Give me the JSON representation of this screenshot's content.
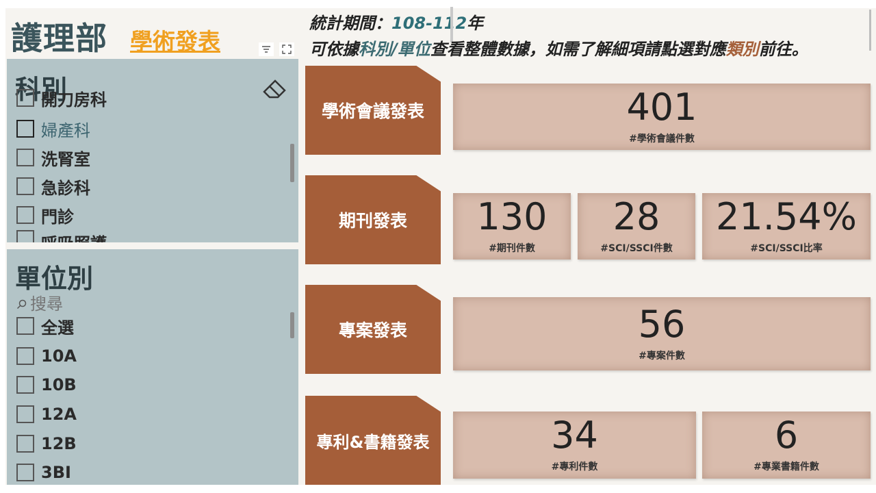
{
  "header": {
    "dept_title": "護理部",
    "section_link": "學術發表",
    "period_label": "統計期間：",
    "period_value": "108-112",
    "period_suffix": "年",
    "hint_part1": "可依據",
    "hint_accent1": "科別/單位",
    "hint_part2": "查看整體數據，如需了解細項請點選對應",
    "hint_accent2": "類別",
    "hint_part3": "前往。"
  },
  "slicer_dept": {
    "title": "科別",
    "items": [
      {
        "label": "開刀房科"
      },
      {
        "label": "婦產科"
      },
      {
        "label": "洗腎室"
      },
      {
        "label": "急診科"
      },
      {
        "label": "門診"
      },
      {
        "label": "呼吸照護"
      }
    ]
  },
  "slicer_unit": {
    "title": "單位別",
    "search_placeholder": "搜尋",
    "items": [
      {
        "label": "全選"
      },
      {
        "label": "10A"
      },
      {
        "label": "10B"
      },
      {
        "label": "12A"
      },
      {
        "label": "12B"
      },
      {
        "label": "3BI"
      }
    ]
  },
  "categories": {
    "conference": {
      "label": "學術會議發表"
    },
    "journal": {
      "label": "期刊發表"
    },
    "project": {
      "label": "專案發表"
    },
    "patent_book": {
      "label": "專利&書籍發表"
    }
  },
  "cards": {
    "conference_count": {
      "value": "401",
      "label": "#學術會議件數"
    },
    "journal_count": {
      "value": "130",
      "label": "#期刊件數"
    },
    "sci_count": {
      "value": "28",
      "label": "#SCI/SSCI件數"
    },
    "sci_ratio": {
      "value": "21.54%",
      "label": "#SCI/SSCI比率"
    },
    "project_count": {
      "value": "56",
      "label": "#專案件數"
    },
    "patent_count": {
      "value": "34",
      "label": "#專利件數"
    },
    "book_count": {
      "value": "6",
      "label": "#專業書籍件數"
    }
  },
  "colors": {
    "tag": "#a55e39",
    "card": "#d9bcad",
    "slicer": "#b3c4c7",
    "title": "#3b555c",
    "link": "#f0a020"
  }
}
